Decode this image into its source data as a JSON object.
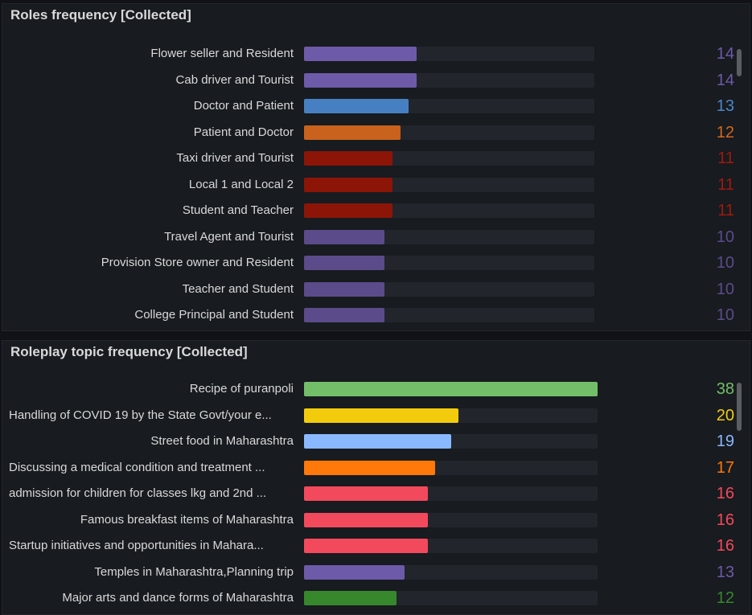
{
  "panels": [
    {
      "title": "Roles frequency [Collected]",
      "label_align": "right",
      "chart_data": {
        "type": "bar",
        "orientation": "horizontal",
        "title": "Roles frequency [Collected]",
        "xlim": [
          0,
          36
        ],
        "categories": [
          "Flower seller and Resident",
          "Cab driver and Tourist",
          "Doctor and Patient",
          "Patient and Doctor",
          "Taxi driver and Tourist",
          "Local 1 and Local 2",
          "Student and Teacher",
          "Travel Agent and Tourist",
          "Provision Store owner and Resident",
          "Teacher and Student",
          "College Principal and Student"
        ],
        "values": [
          14,
          14,
          13,
          12,
          11,
          11,
          11,
          10,
          10,
          10,
          10
        ],
        "colors": [
          "#6d5aa8",
          "#6d5aa8",
          "#4680c2",
          "#c8621c",
          "#8c1508",
          "#8c1508",
          "#8c1508",
          "#5b4b8a",
          "#5b4b8a",
          "#5b4b8a",
          "#5b4b8a"
        ],
        "value_colors": [
          "#6d5aa8",
          "#6d5aa8",
          "#4a86c8",
          "#d2691e",
          "#a01a0c",
          "#a01a0c",
          "#a01a0c",
          "#5b4b8a",
          "#5b4b8a",
          "#5b4b8a",
          "#5b4b8a"
        ]
      }
    },
    {
      "title": "Roleplay topic frequency [Collected]",
      "label_align": "mixed",
      "chart_data": {
        "type": "bar",
        "orientation": "horizontal",
        "title": "Roleplay topic frequency [Collected]",
        "xlim": [
          0,
          38
        ],
        "categories": [
          "Recipe of puranpoli",
          "Handling of COVID 19 by the State Govt/your e...",
          "Street food in Maharashtra",
          "Discussing a medical condition and treatment ...",
          "admission for children for classes lkg and 2nd ...",
          "Famous breakfast items of Maharashtra",
          "Startup initiatives and opportunities in Mahara...",
          "Temples in Maharashtra,Planning trip",
          "Major arts and dance forms of Maharashtra"
        ],
        "values": [
          38,
          20,
          19,
          17,
          16,
          16,
          16,
          13,
          12
        ],
        "colors": [
          "#73bf69",
          "#f2cc0c",
          "#8ab8ff",
          "#ff780a",
          "#f2495c",
          "#f2495c",
          "#f2495c",
          "#6d5aa8",
          "#37872d"
        ],
        "value_colors": [
          "#73bf69",
          "#f2cc0c",
          "#8ab8ff",
          "#ff780a",
          "#f2495c",
          "#f2495c",
          "#f2495c",
          "#6d5aa8",
          "#37872d"
        ],
        "label_alignments": [
          "right",
          "left",
          "right",
          "left",
          "left",
          "right",
          "left",
          "right",
          "right"
        ]
      }
    }
  ]
}
